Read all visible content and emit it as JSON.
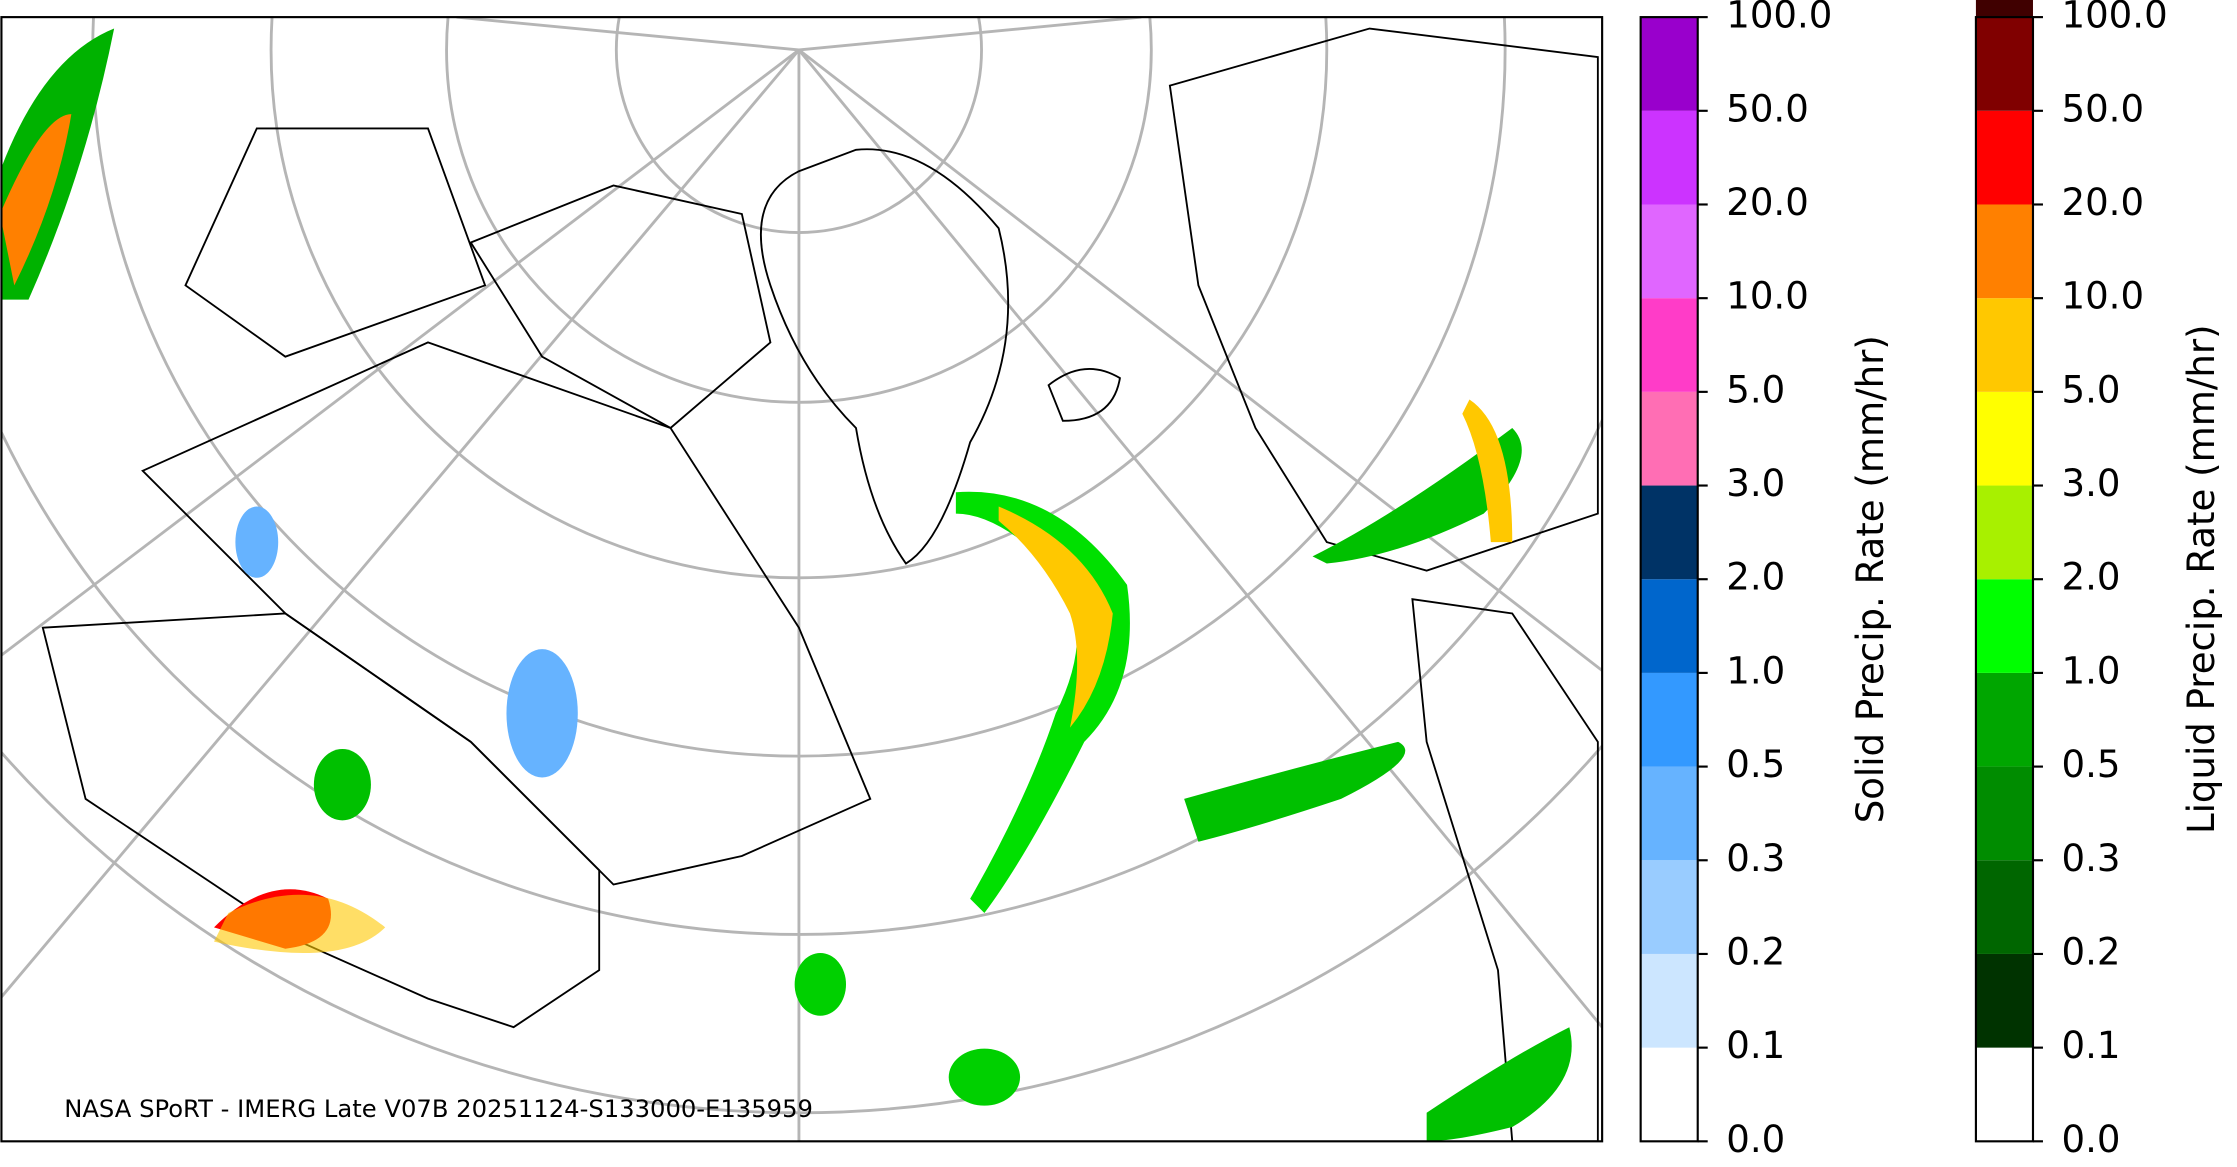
{
  "map": {
    "caption": "NASA SPoRT - IMERG Late V07B 20251124-S133000-E135959"
  },
  "colorbars": [
    {
      "label": "Solid Precip. Rate (mm/hr)",
      "ticks": [
        "0.0",
        "0.1",
        "0.2",
        "0.3",
        "0.5",
        "1.0",
        "2.0",
        "3.0",
        "5.0",
        "10.0",
        "20.0",
        "50.0",
        "100.0"
      ],
      "colors": [
        "#ffffff",
        "#cce6ff",
        "#99ccff",
        "#66b3ff",
        "#3399ff",
        "#0066cc",
        "#003366",
        "#ff6eb4",
        "#ff3cc8",
        "#e066ff",
        "#cc33ff",
        "#9900cc"
      ]
    },
    {
      "label": "Liquid Precip. Rate (mm/hr)",
      "ticks": [
        "0.0",
        "0.1",
        "0.2",
        "0.3",
        "0.5",
        "1.0",
        "2.0",
        "3.0",
        "5.0",
        "10.0",
        "20.0",
        "50.0",
        "100.0"
      ],
      "colors": [
        "#ffffff",
        "#003300",
        "#006600",
        "#008c00",
        "#00a600",
        "#00ff00",
        "#a8f000",
        "#ffff00",
        "#ffc800",
        "#ff8000",
        "#ff0000",
        "#800000",
        "#400000"
      ]
    }
  ]
}
